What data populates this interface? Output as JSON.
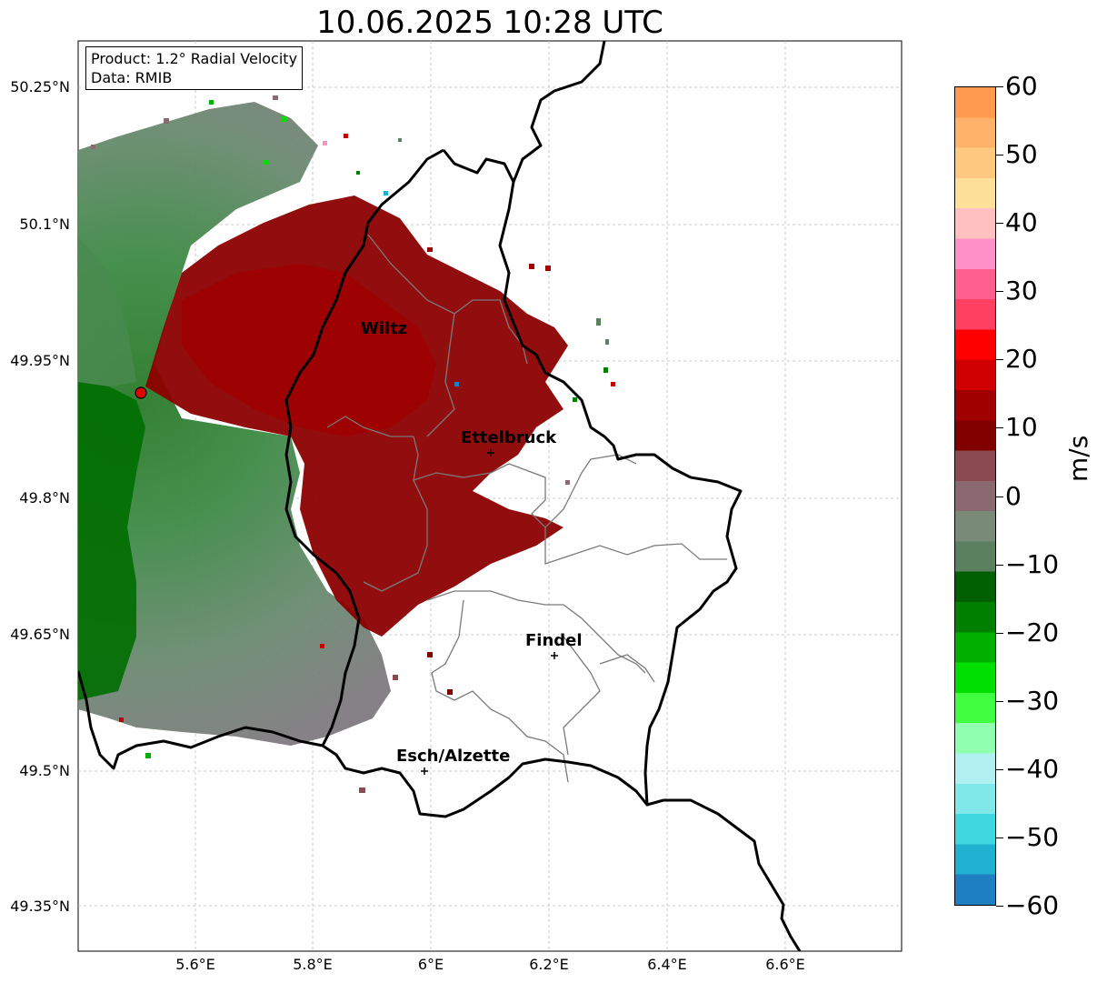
{
  "title": "10.06.2025 10:28 UTC",
  "info": {
    "product": "Product: 1.2° Radial Velocity",
    "data": "Data: RMIB"
  },
  "lat_ticks": [
    "50.25°N",
    "50.1°N",
    "49.95°N",
    "49.8°N",
    "49.65°N",
    "49.5°N",
    "49.35°N"
  ],
  "lon_ticks": [
    "5.6°E",
    "5.8°E",
    "6°E",
    "6.2°E",
    "6.4°E",
    "6.6°E"
  ],
  "places": [
    {
      "name": "Wiltz"
    },
    {
      "name": "Ettelbruck"
    },
    {
      "name": "Findel"
    },
    {
      "name": "Esch/Alzette"
    }
  ],
  "colorbar": {
    "unit": "m/s",
    "ticks": [
      "60",
      "50",
      "40",
      "30",
      "20",
      "10",
      "0",
      "−10",
      "−20",
      "−30",
      "−40",
      "−50",
      "−60"
    ],
    "min": -60,
    "max": 60,
    "colors_top_to_bottom": [
      "#ff9a50",
      "#ffb26a",
      "#ffc880",
      "#ffe09a",
      "#ffc0c0",
      "#ff90c8",
      "#ff6090",
      "#ff4060",
      "#ff0000",
      "#d00000",
      "#a00000",
      "#800000",
      "#8a4a50",
      "#8a6a70",
      "#7a8a78",
      "#5a8060",
      "#006000",
      "#008000",
      "#00b000",
      "#00e000",
      "#40ff40",
      "#90ffb0",
      "#b0f0f0",
      "#80e8e8",
      "#40d8e0",
      "#20b0d0",
      "#1e80c0"
    ]
  },
  "legend_colors": {
    "inbound_strong": "#006400",
    "outbound_strong": "#8b0000",
    "neutral": "#807880",
    "radar_site": "#e00000"
  }
}
